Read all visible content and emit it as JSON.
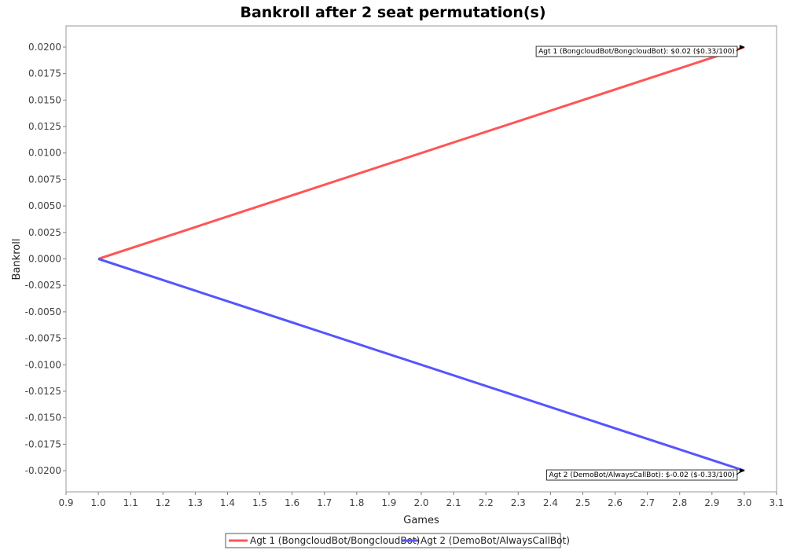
{
  "chart_data": {
    "type": "line",
    "title": "Bankroll after 2 seat permutation(s)",
    "xlabel": "Games",
    "ylabel": "Bankroll",
    "xlim": [
      0.9,
      3.1
    ],
    "ylim": [
      -0.022,
      0.022
    ],
    "x_ticks": [
      "0.9",
      "1.0",
      "1.1",
      "1.2",
      "1.3",
      "1.4",
      "1.5",
      "1.6",
      "1.7",
      "1.8",
      "1.9",
      "2.0",
      "2.1",
      "2.2",
      "2.3",
      "2.4",
      "2.5",
      "2.6",
      "2.7",
      "2.8",
      "2.9",
      "3.0",
      "3.1"
    ],
    "y_ticks": [
      "0.0200",
      "0.0175",
      "0.0150",
      "0.0125",
      "0.0100",
      "0.0075",
      "0.0050",
      "0.0025",
      "0.0000",
      "-0.0025",
      "-0.0050",
      "-0.0075",
      "-0.0100",
      "-0.0125",
      "-0.0150",
      "-0.0175",
      "-0.0200"
    ],
    "grid": false,
    "legend_position": "bottom",
    "series": [
      {
        "name": "Agt 1 (BongcloudBot/BongcloudBot)",
        "color": "#ff5555",
        "x": [
          1.0,
          3.0
        ],
        "y": [
          0.0,
          0.02
        ],
        "annotation": "Agt 1 (BongcloudBot/BongcloudBot): $0.02 ($0.33/100)"
      },
      {
        "name": "Agt 2 (DemoBot/AlwaysCallBot)",
        "color": "#5555ff",
        "x": [
          1.0,
          3.0
        ],
        "y": [
          0.0,
          -0.02
        ],
        "annotation": "Agt 2 (DemoBot/AlwaysCallBot): $-0.02 ($-0.33/100)"
      }
    ]
  }
}
